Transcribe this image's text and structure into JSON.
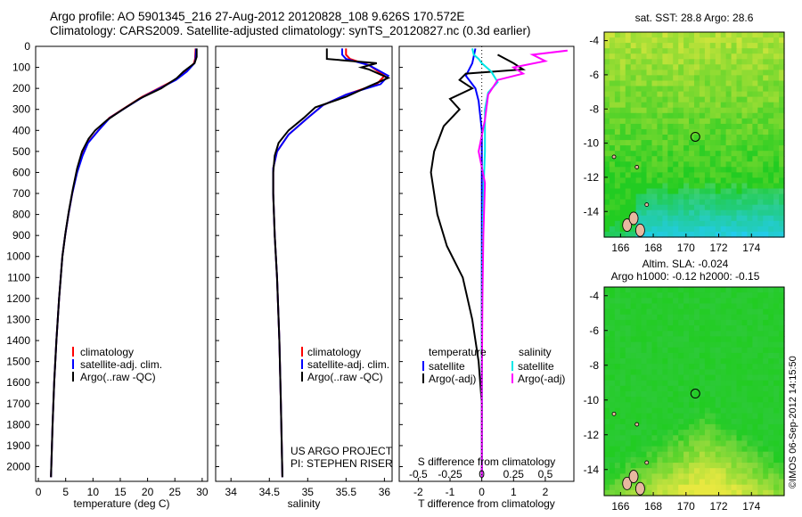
{
  "header": {
    "line1": "Argo profile: AO 5901345_216 27-Aug-2012 20120828_108 9.626S 170.572E",
    "line2": "Climatology: CARS2009. Satellite-adjusted climatology: synTS_20120827.nc (0.3d earlier)"
  },
  "colors": {
    "climatology": "#ff0000",
    "satellite_adj": "#0000ff",
    "argo": "#000000",
    "salinity_sat": "#00e8e8",
    "salinity_argo": "#ff00ff",
    "map_ocean_deep": "#22cc22",
    "map_warm": "#e8e840",
    "map_cool": "#22ccee",
    "land": "#e8b8a0"
  },
  "chart_data": [
    {
      "type": "line",
      "panel": "temperature",
      "xlabel": "temperature (deg C)",
      "xlim": [
        -0.5,
        31
      ],
      "ylim": [
        2070,
        0
      ],
      "xticks": [
        0,
        5,
        10,
        15,
        20,
        25,
        30
      ],
      "yticks": [
        0,
        100,
        200,
        300,
        400,
        500,
        600,
        700,
        800,
        900,
        1000,
        1100,
        1200,
        1300,
        1400,
        1500,
        1600,
        1700,
        1800,
        1900,
        2000
      ],
      "legend": [
        "climatology",
        "satellite-adj. clim.",
        "Argo(..raw -QC)"
      ],
      "series": [
        {
          "name": "climatology",
          "color": "climatology",
          "points": [
            [
              28.8,
              10
            ],
            [
              28.7,
              60
            ],
            [
              28.5,
              80
            ],
            [
              27.0,
              120
            ],
            [
              25.0,
              160
            ],
            [
              22.0,
              200
            ],
            [
              19.0,
              240
            ],
            [
              16.0,
              290
            ],
            [
              13.0,
              340
            ],
            [
              11.0,
              400
            ],
            [
              9.0,
              460
            ],
            [
              8.0,
              520
            ],
            [
              7.0,
              600
            ],
            [
              6.2,
              700
            ],
            [
              5.5,
              800
            ],
            [
              4.9,
              900
            ],
            [
              4.4,
              1000
            ],
            [
              3.8,
              1200
            ],
            [
              3.3,
              1400
            ],
            [
              2.9,
              1600
            ],
            [
              2.6,
              1800
            ],
            [
              2.3,
              2050
            ]
          ]
        },
        {
          "name": "satellite-adj. clim.",
          "color": "satellite_adj",
          "points": [
            [
              28.9,
              10
            ],
            [
              28.8,
              60
            ],
            [
              28.6,
              80
            ],
            [
              27.2,
              120
            ],
            [
              25.2,
              160
            ],
            [
              22.2,
              200
            ],
            [
              19.2,
              240
            ],
            [
              16.1,
              290
            ],
            [
              13.1,
              340
            ],
            [
              11.0,
              400
            ],
            [
              9.1,
              460
            ],
            [
              8.1,
              520
            ],
            [
              7.1,
              600
            ],
            [
              6.2,
              700
            ],
            [
              5.5,
              800
            ],
            [
              4.9,
              900
            ],
            [
              4.4,
              1000
            ],
            [
              3.8,
              1200
            ],
            [
              3.3,
              1400
            ],
            [
              2.9,
              1600
            ],
            [
              2.6,
              1800
            ],
            [
              2.3,
              2050
            ]
          ]
        },
        {
          "name": "Argo(..raw -QC)",
          "color": "argo",
          "points": [
            [
              29.0,
              10
            ],
            [
              29.0,
              50
            ],
            [
              28.6,
              80
            ],
            [
              26.6,
              120
            ],
            [
              25.4,
              150
            ],
            [
              22.5,
              200
            ],
            [
              18.5,
              250
            ],
            [
              15.5,
              300
            ],
            [
              12.6,
              350
            ],
            [
              10.4,
              400
            ],
            [
              9.2,
              440
            ],
            [
              8.0,
              500
            ],
            [
              7.1,
              580
            ],
            [
              6.3,
              680
            ],
            [
              5.6,
              780
            ],
            [
              5.0,
              880
            ],
            [
              4.4,
              1000
            ],
            [
              3.8,
              1200
            ],
            [
              3.3,
              1400
            ],
            [
              2.9,
              1600
            ],
            [
              2.6,
              1800
            ],
            [
              2.3,
              2050
            ]
          ]
        }
      ],
      "annotation": ""
    },
    {
      "type": "line",
      "panel": "salinity",
      "xlabel": "salinity",
      "xlim": [
        33.8,
        36.1
      ],
      "ylim": [
        2070,
        0
      ],
      "xticks": [
        34,
        34.5,
        35,
        35.5,
        36
      ],
      "legend": [
        "climatology",
        "satellite-adj. clim.",
        "Argo(..raw -QC)"
      ],
      "series": [
        {
          "name": "climatology",
          "color": "climatology",
          "points": [
            [
              35.5,
              10
            ],
            [
              35.5,
              40
            ],
            [
              35.55,
              60
            ],
            [
              35.8,
              90
            ],
            [
              36.0,
              140
            ],
            [
              35.9,
              180
            ],
            [
              35.5,
              230
            ],
            [
              35.2,
              280
            ],
            [
              35.0,
              340
            ],
            [
              34.75,
              420
            ],
            [
              34.6,
              500
            ],
            [
              34.55,
              580
            ],
            [
              34.55,
              700
            ],
            [
              34.57,
              900
            ],
            [
              34.6,
              1100
            ],
            [
              34.63,
              1400
            ],
            [
              34.65,
              1700
            ],
            [
              34.67,
              2050
            ]
          ]
        },
        {
          "name": "satellite-adj. clim.",
          "color": "satellite_adj",
          "points": [
            [
              35.45,
              10
            ],
            [
              35.45,
              40
            ],
            [
              35.5,
              60
            ],
            [
              35.8,
              90
            ],
            [
              36.05,
              140
            ],
            [
              35.95,
              180
            ],
            [
              35.5,
              230
            ],
            [
              35.2,
              280
            ],
            [
              35.0,
              340
            ],
            [
              34.75,
              420
            ],
            [
              34.6,
              500
            ],
            [
              34.55,
              580
            ],
            [
              34.55,
              700
            ],
            [
              34.57,
              900
            ],
            [
              34.6,
              1100
            ],
            [
              34.63,
              1400
            ],
            [
              34.65,
              1700
            ],
            [
              34.67,
              2050
            ]
          ]
        },
        {
          "name": "Argo(..raw -QC)",
          "color": "argo",
          "points": [
            [
              35.25,
              10
            ],
            [
              35.25,
              60
            ],
            [
              35.9,
              80
            ],
            [
              35.7,
              100
            ],
            [
              35.8,
              110
            ],
            [
              36.05,
              150
            ],
            [
              35.8,
              190
            ],
            [
              35.5,
              240
            ],
            [
              35.1,
              290
            ],
            [
              34.95,
              340
            ],
            [
              34.75,
              400
            ],
            [
              34.62,
              460
            ],
            [
              34.57,
              520
            ],
            [
              34.55,
              600
            ],
            [
              34.55,
              700
            ],
            [
              34.57,
              900
            ],
            [
              34.6,
              1100
            ],
            [
              34.63,
              1400
            ],
            [
              34.65,
              1700
            ],
            [
              34.67,
              2050
            ]
          ]
        }
      ],
      "annotation": [
        "US ARGO PROJECT",
        "PI: STEPHEN RISER"
      ]
    },
    {
      "type": "line",
      "panel": "difference",
      "xlabel": "T difference from climatology",
      "xlabel_top": "S difference from climatology",
      "xlim": [
        -2.6,
        2.9
      ],
      "ylim": [
        2070,
        0
      ],
      "xticks": [
        -2,
        -1,
        0,
        1,
        2
      ],
      "s_ticks": [
        -0.5,
        -0.25,
        0,
        0.25,
        0.5
      ],
      "legend_temperature_title": "temperature",
      "legend_salinity_title": "salinity",
      "legend": [
        "satellite",
        "Argo(-adj)",
        "satellite",
        "Argo(-adj)"
      ],
      "series": [
        {
          "name": "temperature satellite",
          "color": "satellite_adj",
          "points": [
            [
              -0.2,
              10
            ],
            [
              -0.3,
              80
            ],
            [
              -0.5,
              140
            ],
            [
              -0.2,
              200
            ],
            [
              -0.1,
              260
            ],
            [
              0,
              400
            ],
            [
              0,
              2050
            ]
          ]
        },
        {
          "name": "temperature Argo(-adj)",
          "color": "argo",
          "points": [
            [
              0.5,
              40
            ],
            [
              1.0,
              80
            ],
            [
              1.3,
              110
            ],
            [
              -0.5,
              130
            ],
            [
              -0.7,
              160
            ],
            [
              -0.3,
              200
            ],
            [
              -1.0,
              250
            ],
            [
              -0.7,
              300
            ],
            [
              -1.2,
              380
            ],
            [
              -1.5,
              500
            ],
            [
              -1.6,
              600
            ],
            [
              -1.5,
              700
            ],
            [
              -1.4,
              800
            ],
            [
              -1.1,
              950
            ],
            [
              -0.6,
              1100
            ],
            [
              -0.3,
              1300
            ],
            [
              -0.1,
              1500
            ],
            [
              0,
              1700
            ],
            [
              0,
              2050
            ]
          ]
        },
        {
          "name": "salinity satellite",
          "color": "salinity_sat",
          "points": [
            [
              -0.3,
              10
            ],
            [
              -0.25,
              40
            ],
            [
              -0.1,
              60
            ],
            [
              0,
              80
            ],
            [
              0.3,
              120
            ],
            [
              0.5,
              170
            ],
            [
              0.2,
              220
            ],
            [
              0.1,
              300
            ],
            [
              0.1,
              500
            ],
            [
              0.05,
              700
            ],
            [
              0.02,
              1000
            ],
            [
              0,
              1500
            ],
            [
              0,
              2050
            ]
          ]
        },
        {
          "name": "salinity Argo(-adj)",
          "color": "salinity_argo",
          "points": [
            [
              2.7,
              20
            ],
            [
              1.6,
              40
            ],
            [
              2.0,
              70
            ],
            [
              1.0,
              100
            ],
            [
              1.3,
              130
            ],
            [
              0.5,
              160
            ],
            [
              0.2,
              230
            ],
            [
              0.1,
              350
            ],
            [
              -0.1,
              500
            ],
            [
              0.1,
              650
            ],
            [
              0.05,
              900
            ],
            [
              0.02,
              1200
            ],
            [
              0,
              1600
            ],
            [
              0,
              2050
            ]
          ]
        }
      ]
    },
    {
      "type": "heatmap",
      "panel": "sst_map",
      "title": "sat. SST: 28.8  Argo: 28.6",
      "xticks": [
        166,
        168,
        170,
        172,
        174
      ],
      "yticks": [
        -4,
        -6,
        -8,
        -10,
        -12,
        -14
      ],
      "xlim": [
        165,
        176
      ],
      "ylim": [
        -15.5,
        -3.5
      ],
      "marker": [
        170.57,
        -9.63
      ]
    },
    {
      "type": "heatmap",
      "panel": "sla_map",
      "title": [
        "Altim. SLA: -0.024",
        "Argo h1000: -0.12  h2000: -0.15"
      ],
      "xticks": [
        166,
        168,
        170,
        172,
        174
      ],
      "yticks": [
        -4,
        -6,
        -8,
        -10,
        -12,
        -14
      ],
      "xlim": [
        165,
        176
      ],
      "ylim": [
        -15.5,
        -3.5
      ],
      "marker": [
        170.57,
        -9.63
      ]
    }
  ],
  "footer": {
    "stamp": "©IMOS 06-Sep-2012 14:15:50"
  }
}
